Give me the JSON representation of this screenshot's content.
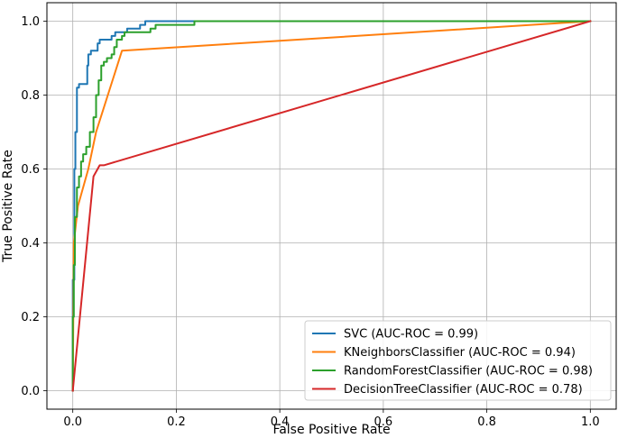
{
  "chart_data": {
    "type": "line",
    "title": "",
    "xlabel": "False Positive Rate",
    "ylabel": "True Positive Rate",
    "xlim": [
      -0.05,
      1.05
    ],
    "ylim": [
      -0.05,
      1.05
    ],
    "xticks": [
      "0.0",
      "0.2",
      "0.4",
      "0.6",
      "0.8",
      "1.0"
    ],
    "yticks": [
      "0.0",
      "0.2",
      "0.4",
      "0.6",
      "0.8",
      "1.0"
    ],
    "grid": true,
    "legend_position": "lower-right",
    "series": [
      {
        "name": "SVC (AUC-ROC = 0.99)",
        "color": "#1f77b4",
        "points": [
          [
            0,
            0
          ],
          [
            0,
            0.3
          ],
          [
            0.003,
            0.3
          ],
          [
            0.003,
            0.6
          ],
          [
            0.005,
            0.6
          ],
          [
            0.005,
            0.7
          ],
          [
            0.008,
            0.7
          ],
          [
            0.008,
            0.82
          ],
          [
            0.012,
            0.82
          ],
          [
            0.012,
            0.83
          ],
          [
            0.028,
            0.83
          ],
          [
            0.028,
            0.88
          ],
          [
            0.03,
            0.88
          ],
          [
            0.03,
            0.91
          ],
          [
            0.035,
            0.91
          ],
          [
            0.035,
            0.92
          ],
          [
            0.048,
            0.92
          ],
          [
            0.048,
            0.94
          ],
          [
            0.052,
            0.94
          ],
          [
            0.052,
            0.95
          ],
          [
            0.075,
            0.95
          ],
          [
            0.075,
            0.96
          ],
          [
            0.082,
            0.96
          ],
          [
            0.082,
            0.97
          ],
          [
            0.105,
            0.97
          ],
          [
            0.105,
            0.98
          ],
          [
            0.13,
            0.98
          ],
          [
            0.13,
            0.99
          ],
          [
            0.14,
            0.99
          ],
          [
            0.14,
            1.0
          ],
          [
            0.235,
            1.0
          ]
        ]
      },
      {
        "name": "KNeighborsClassifier (AUC-ROC = 0.94)",
        "color": "#ff7f0e",
        "points": [
          [
            0,
            0
          ],
          [
            0.002,
            0.4
          ],
          [
            0.01,
            0.5
          ],
          [
            0.03,
            0.6
          ],
          [
            0.045,
            0.7
          ],
          [
            0.095,
            0.92
          ],
          [
            1.0,
            1.0
          ]
        ]
      },
      {
        "name": "RandomForestClassifier (AUC-ROC = 0.98)",
        "color": "#2ca02c",
        "points": [
          [
            0,
            0
          ],
          [
            0,
            0.2
          ],
          [
            0.002,
            0.2
          ],
          [
            0.002,
            0.34
          ],
          [
            0.004,
            0.34
          ],
          [
            0.004,
            0.47
          ],
          [
            0.008,
            0.47
          ],
          [
            0.008,
            0.55
          ],
          [
            0.012,
            0.55
          ],
          [
            0.012,
            0.58
          ],
          [
            0.016,
            0.58
          ],
          [
            0.016,
            0.62
          ],
          [
            0.02,
            0.62
          ],
          [
            0.02,
            0.64
          ],
          [
            0.026,
            0.64
          ],
          [
            0.026,
            0.66
          ],
          [
            0.033,
            0.66
          ],
          [
            0.033,
            0.7
          ],
          [
            0.04,
            0.7
          ],
          [
            0.04,
            0.74
          ],
          [
            0.045,
            0.74
          ],
          [
            0.045,
            0.8
          ],
          [
            0.05,
            0.8
          ],
          [
            0.05,
            0.84
          ],
          [
            0.055,
            0.84
          ],
          [
            0.055,
            0.88
          ],
          [
            0.06,
            0.88
          ],
          [
            0.06,
            0.89
          ],
          [
            0.066,
            0.89
          ],
          [
            0.066,
            0.9
          ],
          [
            0.075,
            0.9
          ],
          [
            0.075,
            0.91
          ],
          [
            0.08,
            0.91
          ],
          [
            0.08,
            0.93
          ],
          [
            0.085,
            0.93
          ],
          [
            0.085,
            0.95
          ],
          [
            0.095,
            0.95
          ],
          [
            0.095,
            0.96
          ],
          [
            0.1,
            0.96
          ],
          [
            0.1,
            0.97
          ],
          [
            0.15,
            0.97
          ],
          [
            0.15,
            0.98
          ],
          [
            0.16,
            0.98
          ],
          [
            0.16,
            0.99
          ],
          [
            0.235,
            0.99
          ],
          [
            0.235,
            1.0
          ],
          [
            1.0,
            1.0
          ]
        ]
      },
      {
        "name": "DecisionTreeClassifier (AUC-ROC = 0.78)",
        "color": "#d62728",
        "points": [
          [
            0,
            0
          ],
          [
            0.04,
            0.58
          ],
          [
            0.052,
            0.61
          ],
          [
            0.06,
            0.61
          ],
          [
            1.0,
            1.0
          ]
        ]
      }
    ]
  }
}
